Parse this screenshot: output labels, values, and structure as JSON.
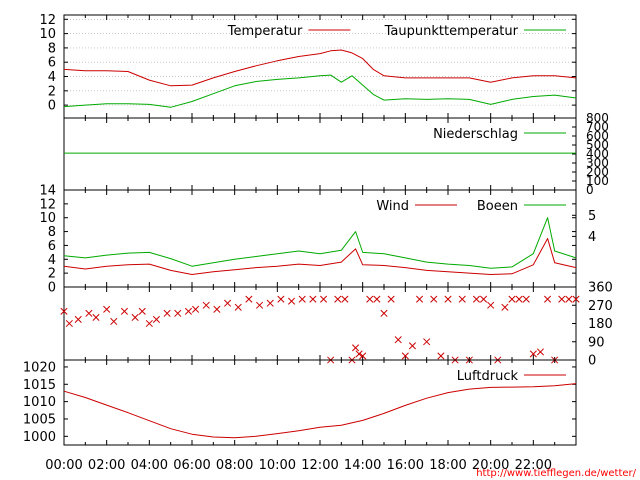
{
  "chart_data": [
    {
      "type": "line",
      "panel": "temperature",
      "x_unit": "time of day",
      "x": [
        "00:00",
        "01:00",
        "02:00",
        "03:00",
        "04:00",
        "05:00",
        "06:00",
        "07:00",
        "08:00",
        "09:00",
        "10:00",
        "11:00",
        "12:00",
        "12:30",
        "13:00",
        "13:30",
        "14:00",
        "14:30",
        "15:00",
        "16:00",
        "17:00",
        "18:00",
        "19:00",
        "20:00",
        "21:00",
        "22:00",
        "23:00",
        "24:00"
      ],
      "ylim": [
        -1,
        12.5
      ],
      "yticks": [
        "0",
        "2",
        "4",
        "6",
        "8",
        "10",
        "12"
      ],
      "grid": true,
      "legend_position": "top-right",
      "series": [
        {
          "name": "Temperatur",
          "color": "#cc0000",
          "values": [
            5,
            4.8,
            4.8,
            4.7,
            3.5,
            2.7,
            2.8,
            3.8,
            4.7,
            5.5,
            6.2,
            6.8,
            7.2,
            7.6,
            7.7,
            7.3,
            6.5,
            5,
            4.1,
            3.8,
            3.8,
            3.8,
            3.8,
            3.2,
            3.8,
            4.1,
            4.1,
            3.8
          ]
        },
        {
          "name": "Taupunkttemperatur",
          "color": "#00aa00",
          "values": [
            -0.2,
            0,
            0.2,
            0.2,
            0.1,
            -0.3,
            0.5,
            1.6,
            2.7,
            3.3,
            3.6,
            3.8,
            4.1,
            4.2,
            3.2,
            4.1,
            2.8,
            1.5,
            0.7,
            0.9,
            0.8,
            0.9,
            0.8,
            0.1,
            0.8,
            1.2,
            1.4,
            1
          ]
        }
      ]
    },
    {
      "type": "line",
      "panel": "precipitation",
      "x": [
        "00:00",
        "24:00"
      ],
      "ylim": [
        0,
        800
      ],
      "yticks": [
        "0",
        "100",
        "200",
        "300",
        "400",
        "500",
        "600",
        "700",
        "800"
      ],
      "legend_position": "top-right",
      "series": [
        {
          "name": "Niederschlag",
          "color": "#00aa00",
          "values": [
            410,
            410
          ]
        }
      ]
    },
    {
      "type": "line",
      "panel": "wind",
      "x_unit": "time of day",
      "x": [
        "00:00",
        "01:00",
        "02:00",
        "03:00",
        "04:00",
        "05:00",
        "06:00",
        "07:00",
        "08:00",
        "09:00",
        "10:00",
        "11:00",
        "12:00",
        "13:00",
        "13:40",
        "14:00",
        "15:00",
        "16:00",
        "17:00",
        "18:00",
        "19:00",
        "20:00",
        "21:00",
        "22:00",
        "22:40",
        "23:00",
        "24:00"
      ],
      "ylim": [
        0,
        14
      ],
      "yticks": [
        "0",
        "2",
        "4",
        "6",
        "8",
        "10",
        "12",
        "14"
      ],
      "y2ticks": [
        "4",
        "5"
      ],
      "legend_position": "top-right",
      "series": [
        {
          "name": "Wind",
          "color": "#cc0000",
          "values": [
            3,
            2.6,
            3,
            3.2,
            3.3,
            2.4,
            1.8,
            2.2,
            2.5,
            2.8,
            3,
            3.3,
            3.1,
            3.6,
            5.5,
            3.2,
            3.1,
            2.8,
            2.4,
            2.2,
            2,
            1.8,
            1.9,
            3.2,
            7,
            3.5,
            2.8
          ]
        },
        {
          "name": "Boeen",
          "color": "#00aa00",
          "values": [
            4.5,
            4.2,
            4.6,
            4.9,
            5,
            4.1,
            3,
            3.5,
            4,
            4.4,
            4.8,
            5.2,
            4.8,
            5.3,
            8,
            5,
            4.8,
            4.2,
            3.6,
            3.3,
            3.1,
            2.7,
            2.9,
            4.8,
            10,
            5.2,
            4.2
          ]
        }
      ]
    },
    {
      "type": "scatter",
      "panel": "wind-direction",
      "x_unit": "time of day",
      "ylim": [
        0,
        360
      ],
      "y2ticks": [
        "0",
        "90",
        "180",
        "270",
        "360"
      ],
      "series": [
        {
          "color": "#cc0000",
          "marker": "x",
          "points": [
            [
              "00:00",
              240
            ],
            [
              "00:15",
              180
            ],
            [
              "00:40",
              200
            ],
            [
              "01:10",
              230
            ],
            [
              "01:30",
              210
            ],
            [
              "02:00",
              250
            ],
            [
              "02:20",
              190
            ],
            [
              "02:50",
              240
            ],
            [
              "03:20",
              210
            ],
            [
              "03:40",
              240
            ],
            [
              "04:00",
              180
            ],
            [
              "04:20",
              200
            ],
            [
              "04:50",
              230
            ],
            [
              "05:20",
              230
            ],
            [
              "05:50",
              240
            ],
            [
              "06:10",
              250
            ],
            [
              "06:40",
              270
            ],
            [
              "07:10",
              250
            ],
            [
              "07:40",
              280
            ],
            [
              "08:10",
              260
            ],
            [
              "08:40",
              300
            ],
            [
              "09:10",
              270
            ],
            [
              "09:40",
              280
            ],
            [
              "10:10",
              300
            ],
            [
              "10:40",
              290
            ],
            [
              "11:10",
              300
            ],
            [
              "11:40",
              300
            ],
            [
              "12:10",
              300
            ],
            [
              "12:30",
              0
            ],
            [
              "12:50",
              300
            ],
            [
              "13:10",
              300
            ],
            [
              "13:30",
              0
            ],
            [
              "13:40",
              60
            ],
            [
              "13:50",
              30
            ],
            [
              "14:00",
              20
            ],
            [
              "14:20",
              300
            ],
            [
              "14:40",
              300
            ],
            [
              "15:00",
              230
            ],
            [
              "15:20",
              300
            ],
            [
              "15:40",
              100
            ],
            [
              "16:00",
              20
            ],
            [
              "16:20",
              70
            ],
            [
              "16:40",
              300
            ],
            [
              "17:00",
              90
            ],
            [
              "17:20",
              300
            ],
            [
              "17:40",
              20
            ],
            [
              "18:00",
              300
            ],
            [
              "18:20",
              0
            ],
            [
              "18:40",
              300
            ],
            [
              "19:00",
              0
            ],
            [
              "19:20",
              300
            ],
            [
              "19:40",
              300
            ],
            [
              "20:00",
              270
            ],
            [
              "20:20",
              0
            ],
            [
              "20:40",
              260
            ],
            [
              "21:00",
              300
            ],
            [
              "21:20",
              300
            ],
            [
              "21:40",
              300
            ],
            [
              "22:00",
              30
            ],
            [
              "22:20",
              40
            ],
            [
              "22:40",
              300
            ],
            [
              "23:00",
              0
            ],
            [
              "23:20",
              300
            ],
            [
              "23:40",
              300
            ],
            [
              "24:00",
              300
            ]
          ]
        }
      ]
    },
    {
      "type": "line",
      "panel": "pressure",
      "x_unit": "time of day",
      "x": [
        "00:00",
        "01:00",
        "02:00",
        "03:00",
        "04:00",
        "05:00",
        "06:00",
        "07:00",
        "08:00",
        "09:00",
        "10:00",
        "11:00",
        "12:00",
        "13:00",
        "14:00",
        "15:00",
        "16:00",
        "17:00",
        "18:00",
        "19:00",
        "20:00",
        "21:00",
        "22:00",
        "23:00",
        "24:00"
      ],
      "ylim": [
        997.5,
        1022
      ],
      "yticks": [
        "1000",
        "1005",
        "1010",
        "1015",
        "1020"
      ],
      "legend_position": "top-right",
      "series": [
        {
          "name": "Luftdruck",
          "color": "#cc0000",
          "values": [
            1013,
            1011.2,
            1009,
            1006.8,
            1004.5,
            1002.2,
            1000.6,
            999.8,
            999.6,
            1000,
            1000.8,
            1001.6,
            1002.6,
            1003.2,
            1004.6,
            1006.6,
            1008.9,
            1011,
            1012.6,
            1013.6,
            1014.1,
            1014.2,
            1014.3,
            1014.6,
            1015.2
          ]
        }
      ]
    }
  ],
  "x_axis": {
    "ticks": [
      "00:00",
      "02:00",
      "04:00",
      "06:00",
      "08:00",
      "10:00",
      "12:00",
      "14:00",
      "16:00",
      "18:00",
      "20:00",
      "22:00"
    ]
  },
  "credit": "http://www.tiefflegen.de/wetter/"
}
